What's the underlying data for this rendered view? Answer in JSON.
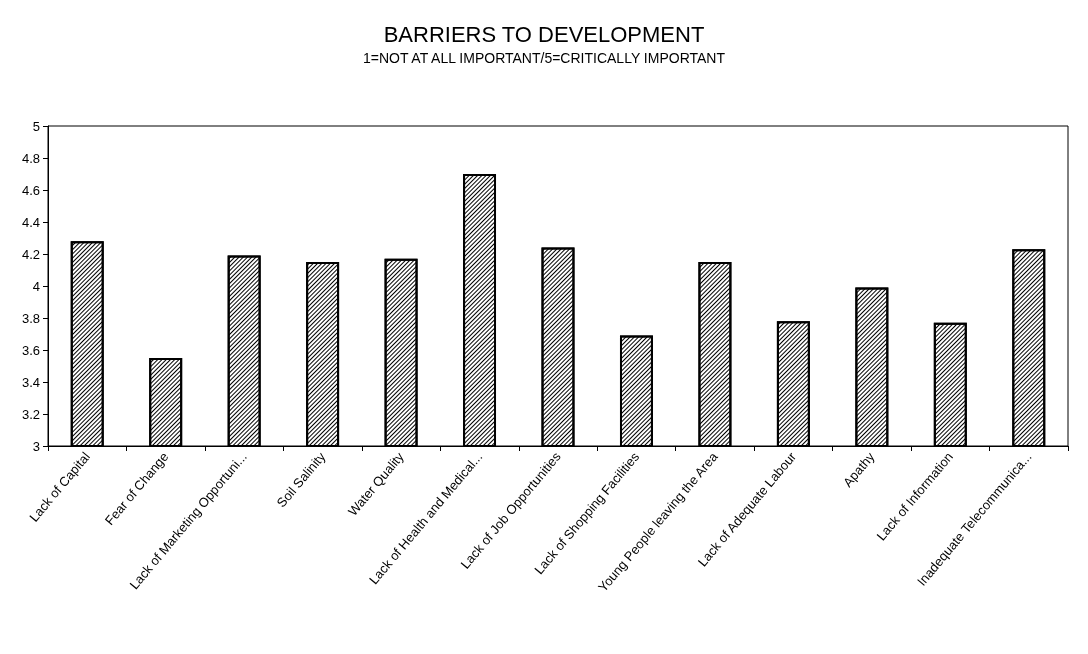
{
  "chart_data": {
    "type": "bar",
    "title": "BARRIERS TO DEVELOPMENT",
    "subtitle": "1=NOT AT ALL IMPORTANT/5=CRITICALLY IMPORTANT",
    "categories": [
      "Lack of Capital",
      "Fear of Change",
      "Lack of Marketing Opportuni...",
      "Soil Salinity",
      "Water Quality",
      "Lack of Health and Medical...",
      "Lack of Job Opportunities",
      "Lack of Shopping Facilities",
      "Young People leaving the Area",
      "Lack of Adequate Labour",
      "Apathy",
      "Lack of Information",
      "Inadequate Telecommunica..."
    ],
    "values": [
      4.28,
      3.55,
      4.19,
      4.15,
      4.17,
      4.7,
      4.24,
      3.69,
      4.15,
      3.78,
      3.99,
      3.77,
      4.23
    ],
    "color": "#000000",
    "ylim": [
      3,
      5
    ],
    "yticks": [
      3,
      3.2,
      3.4,
      3.6,
      3.8,
      4,
      4.2,
      4.4,
      4.6,
      4.8,
      5
    ],
    "grid": false
  }
}
